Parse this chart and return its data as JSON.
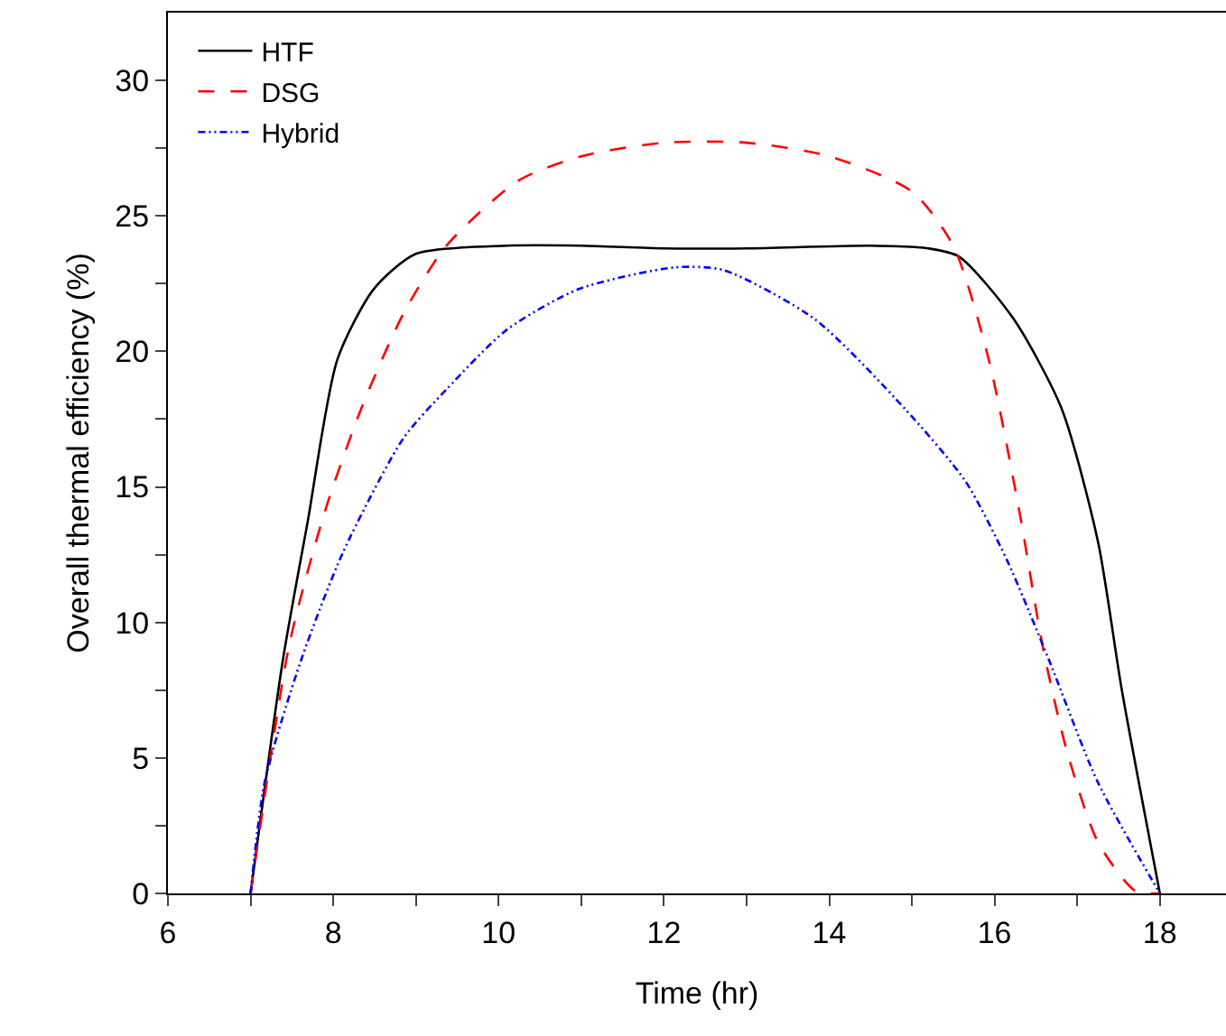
{
  "chart_data": {
    "type": "line",
    "xlabel": "Time (hr)",
    "ylabel": "Overall thermal efficiency (%)",
    "xlim": [
      6,
      18.8
    ],
    "ylim": [
      0,
      32.5
    ],
    "xticks": [
      6,
      {
        "value": 7,
        "label": null
      },
      8,
      {
        "value": 9,
        "label": null
      },
      10,
      {
        "value": 11,
        "label": null
      },
      12,
      {
        "value": 13,
        "label": null
      },
      14,
      {
        "value": 15,
        "label": null
      },
      16,
      {
        "value": 17,
        "label": null
      },
      18
    ],
    "yticks": [
      0,
      {
        "value": 2.5,
        "label": null
      },
      5,
      {
        "value": 7.5,
        "label": null
      },
      10,
      {
        "value": 12.5,
        "label": null
      },
      15,
      {
        "value": 17.5,
        "label": null
      },
      20,
      {
        "value": 22.5,
        "label": null
      },
      25,
      {
        "value": 27.5,
        "label": null
      },
      30
    ],
    "grid": false,
    "legend": "top left",
    "marker": "none",
    "series": [
      {
        "name": "HTF",
        "color": "#000000",
        "line_style": "solid",
        "x": [
          7,
          7.39,
          7.69,
          8.05,
          8.49,
          9.0,
          10.1,
          11,
          12,
          13,
          14.5,
          15.2,
          15.57,
          16.23,
          16.81,
          17.25,
          17.54,
          18
        ],
        "values": [
          0,
          8.6,
          13.7,
          19.7,
          22.3,
          23.6,
          23.9,
          23.9,
          23.8,
          23.8,
          23.9,
          23.8,
          23.5,
          21.2,
          17.9,
          13,
          7.5,
          0
        ]
      },
      {
        "name": "DSG",
        "color": "#ff0000",
        "line_style": "dashed",
        "x": [
          7,
          7.47,
          7.9,
          8.34,
          8.85,
          9.37,
          10.24,
          11,
          12,
          13,
          14,
          15,
          15.5,
          15.93,
          16.3,
          16.59,
          16.88,
          17.25,
          17.7,
          18
        ],
        "values": [
          0,
          9.2,
          14.1,
          17.9,
          21.4,
          23.9,
          26.3,
          27.2,
          27.7,
          27.7,
          27.2,
          25.9,
          23.9,
          19.7,
          14.1,
          9,
          5.2,
          1.9,
          0.1,
          0
        ]
      },
      {
        "name": "Hybrid",
        "color": "#0000ff",
        "line_style": "dashdot",
        "x": [
          7,
          7.17,
          7.61,
          8.12,
          8.85,
          9.37,
          10.1,
          10.97,
          12.13,
          12.72,
          13.82,
          14.91,
          15.65,
          16.15,
          16.66,
          17.25,
          18
        ],
        "values": [
          0,
          4.1,
          8.6,
          12.6,
          16.8,
          18.6,
          20.8,
          22.3,
          23.1,
          23.0,
          21.2,
          17.9,
          15.2,
          12.3,
          8.6,
          4.1,
          0
        ]
      }
    ]
  }
}
